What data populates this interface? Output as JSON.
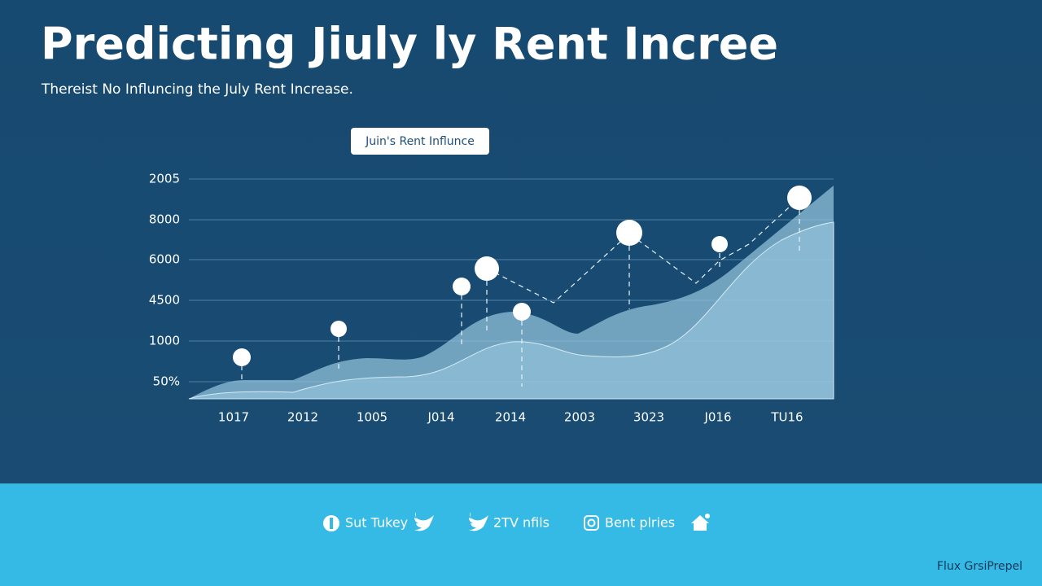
{
  "header": {
    "title": "Predicting Jiuly ly Rent Incree",
    "subtitle": "Thereist No Influncing the July Rent Increase."
  },
  "chart": {
    "legend": "Juin's Rent Influnce",
    "y_labels": [
      "2005",
      "8000",
      "6000",
      "4500",
      "1000",
      "50%"
    ],
    "x_labels": [
      "1017",
      "2012",
      "1005",
      "J014",
      "2014",
      "2003",
      "3023",
      "J016",
      "TU16"
    ]
  },
  "footer": {
    "links": [
      "Sut Tukey",
      "2TV nfils",
      "Bent plries"
    ],
    "credit": "Flux GrsiPrepel"
  }
}
